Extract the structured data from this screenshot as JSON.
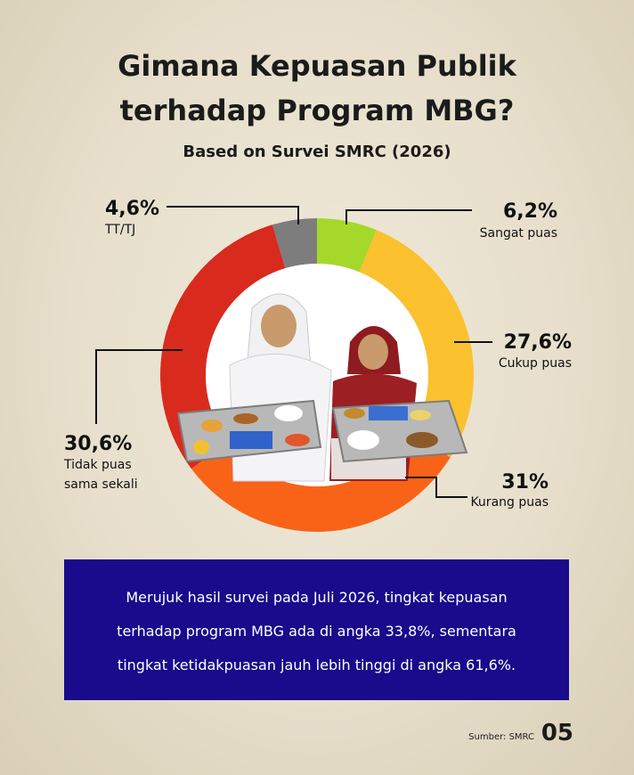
{
  "header": {
    "title_line1": "Gimana Kepuasan Publik",
    "title_line2": "terhadap Program MBG?",
    "subtitle": "Based on Survei SMRC (2026)"
  },
  "chart_data": {
    "type": "pie",
    "title": "Gimana Kepuasan Publik terhadap Program MBG?",
    "subtitle": "Based on Survei SMRC (2026)",
    "slices": [
      {
        "label": "Sangat puas",
        "value": 6.2,
        "display": "6,2%",
        "color": "#a6d82b"
      },
      {
        "label": "Cukup puas",
        "value": 27.6,
        "display": "27,6%",
        "color": "#fbc12e"
      },
      {
        "label": "Kurang puas",
        "value": 31,
        "display": "31%",
        "color": "#f96318"
      },
      {
        "label": "Tidak puas sama sekali",
        "value": 30.6,
        "display": "30,6%",
        "color": "#d92a1e"
      },
      {
        "label": "TT/TJ",
        "value": 4.6,
        "display": "4,6%",
        "color": "#7d7d7d"
      }
    ]
  },
  "labels": {
    "ttj": {
      "pct": "4,6%",
      "name": "TT/TJ"
    },
    "sangat": {
      "pct": "6,2%",
      "name": "Sangat puas"
    },
    "cukup": {
      "pct": "27,6%",
      "name": "Cukup puas"
    },
    "kurang": {
      "pct": "31%",
      "name": "Kurang puas"
    },
    "tidak": {
      "pct": "30,6%",
      "name_line1": "Tidak puas",
      "name_line2": "sama sekali"
    }
  },
  "info": {
    "line1": "Merujuk hasil survei pada Juli 2026, tingkat kepuasan",
    "line2": "terhadap program MBG ada di angka 33,8%, sementara",
    "line3": "tingkat ketidakpuasan jauh lebih tinggi di angka 61,6%."
  },
  "footer": {
    "source": "Sumber: SMRC",
    "page": "05"
  }
}
